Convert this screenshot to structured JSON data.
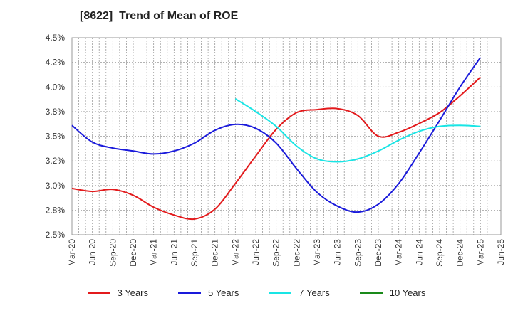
{
  "chart_data": {
    "type": "line",
    "title": "[8622]  Trend of Mean of ROE",
    "xlabel": "",
    "ylabel": "",
    "x_ticks": [
      "Mar-20",
      "Jun-20",
      "Sep-20",
      "Dec-20",
      "Mar-21",
      "Jun-21",
      "Sep-21",
      "Dec-21",
      "Mar-22",
      "Jun-22",
      "Sep-22",
      "Dec-22",
      "Mar-23",
      "Jun-23",
      "Sep-23",
      "Dec-23",
      "Mar-24",
      "Jun-24",
      "Sep-24",
      "Dec-24",
      "Mar-25",
      "Jun-25"
    ],
    "y_ticks": [
      "2.5%",
      "2.8%",
      "3.0%",
      "3.2%",
      "3.5%",
      "3.8%",
      "4.0%",
      "4.2%",
      "4.5%"
    ],
    "ylim": [
      2.5,
      4.5
    ],
    "grid": true,
    "legend_position": "bottom",
    "series": [
      {
        "name": "3 Years",
        "color": "#e31a1c",
        "x": [
          "Mar-20",
          "Jun-20",
          "Sep-20",
          "Dec-20",
          "Mar-21",
          "Jun-21",
          "Sep-21",
          "Dec-21",
          "Mar-22",
          "Jun-22",
          "Sep-22",
          "Dec-22",
          "Mar-23",
          "Jun-23",
          "Sep-23",
          "Dec-23",
          "Mar-24",
          "Jun-24",
          "Sep-24",
          "Dec-24",
          "Mar-25"
        ],
        "values": [
          2.97,
          2.94,
          2.96,
          2.9,
          2.78,
          2.7,
          2.66,
          2.76,
          3.02,
          3.3,
          3.57,
          3.74,
          3.77,
          3.78,
          3.71,
          3.5,
          3.54,
          3.63,
          3.74,
          3.91,
          4.1
        ]
      },
      {
        "name": "5 Years",
        "color": "#1a1adb",
        "x": [
          "Mar-20",
          "Jun-20",
          "Sep-20",
          "Dec-20",
          "Mar-21",
          "Jun-21",
          "Sep-21",
          "Dec-21",
          "Mar-22",
          "Jun-22",
          "Sep-22",
          "Dec-22",
          "Mar-23",
          "Jun-23",
          "Sep-23",
          "Dec-23",
          "Mar-24",
          "Jun-24",
          "Sep-24",
          "Dec-24",
          "Mar-25"
        ],
        "values": [
          3.61,
          3.44,
          3.38,
          3.35,
          3.32,
          3.35,
          3.43,
          3.56,
          3.62,
          3.58,
          3.43,
          3.17,
          2.93,
          2.79,
          2.73,
          2.81,
          3.02,
          3.33,
          3.66,
          4.0,
          4.3
        ]
      },
      {
        "name": "7 Years",
        "color": "#19e5e5",
        "x": [
          "Mar-22",
          "Jun-22",
          "Sep-22",
          "Dec-22",
          "Mar-23",
          "Jun-23",
          "Sep-23",
          "Dec-23",
          "Mar-24",
          "Jun-24",
          "Sep-24",
          "Dec-24",
          "Mar-25"
        ],
        "values": [
          3.88,
          3.75,
          3.6,
          3.4,
          3.27,
          3.24,
          3.27,
          3.35,
          3.46,
          3.55,
          3.6,
          3.61,
          3.6
        ]
      },
      {
        "name": "10 Years",
        "color": "#1a8a1a",
        "x": [],
        "values": []
      }
    ]
  }
}
